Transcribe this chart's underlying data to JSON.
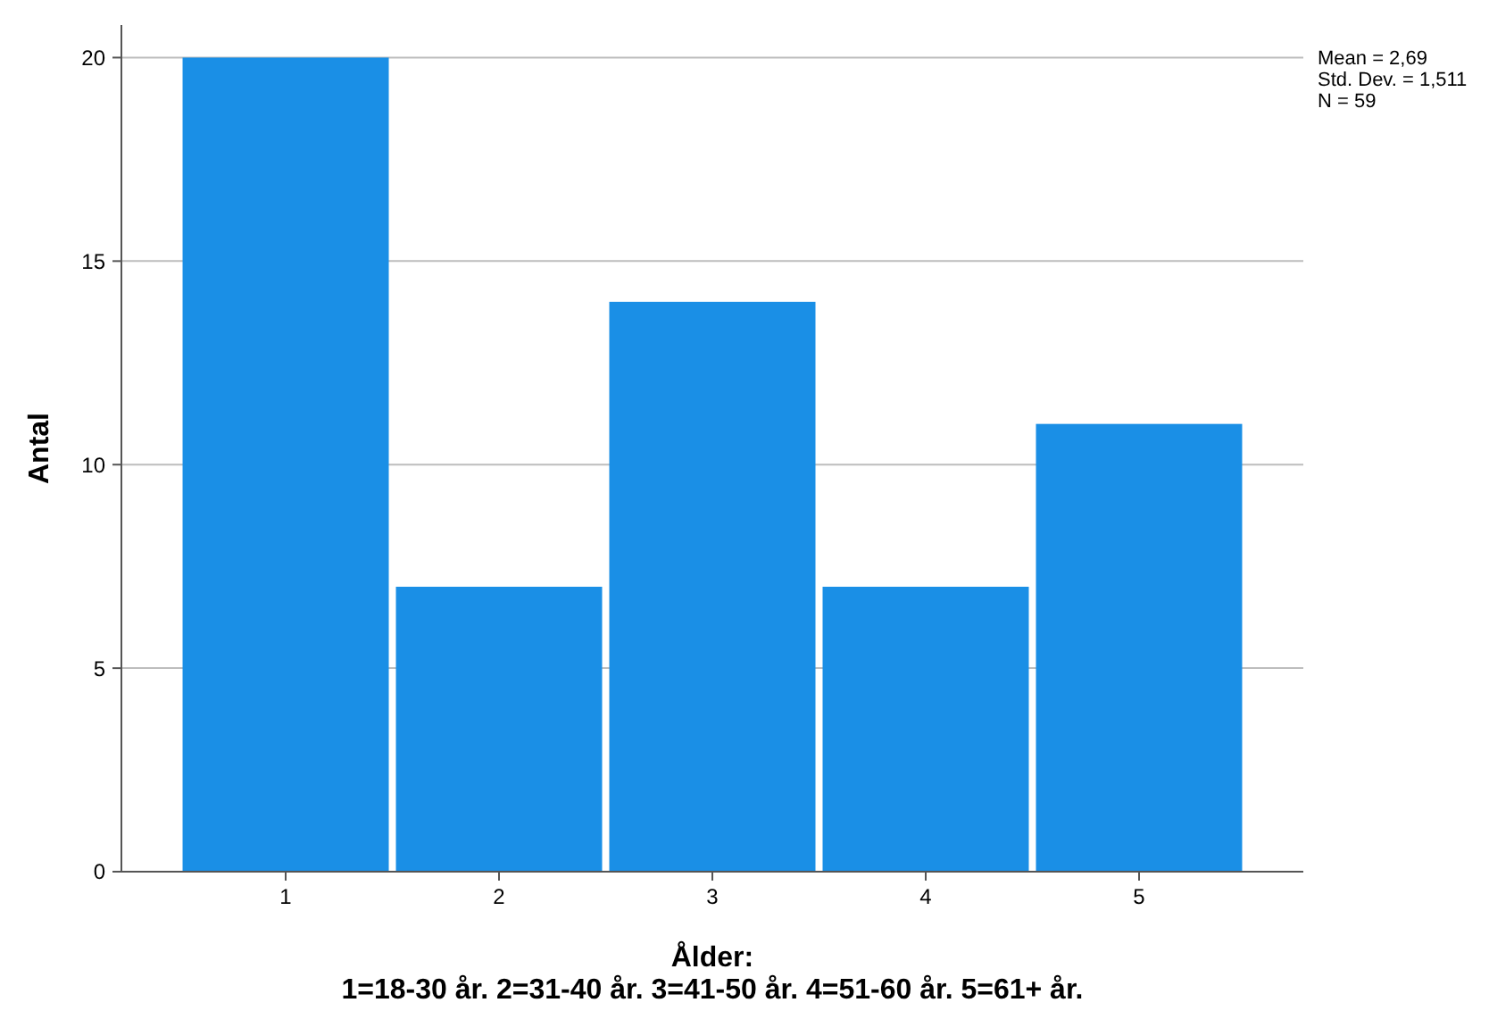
{
  "chart_data": {
    "type": "histogram",
    "xlabel": "Ålder:\n1=18-30 år. 2=31-40 år. 3=41-50 år. 4=51-60 år. 5=61+ år.",
    "ylabel": "Antal",
    "bins": [
      0.5,
      1.5,
      2.5,
      3.5,
      4.5,
      5.5
    ],
    "values": [
      20,
      7,
      14,
      7,
      11
    ],
    "color": "#1a8fe6",
    "xlim": [
      0.23,
      5.77
    ],
    "xticks": [
      1,
      2,
      3,
      4,
      5
    ],
    "ylim": [
      0,
      20.8
    ],
    "yticks": [
      0,
      5,
      10,
      15,
      20
    ],
    "grid": "y",
    "annotations": [
      "Mean = 2,69",
      "Std. Dev. = 1,511",
      "N = 59"
    ]
  }
}
